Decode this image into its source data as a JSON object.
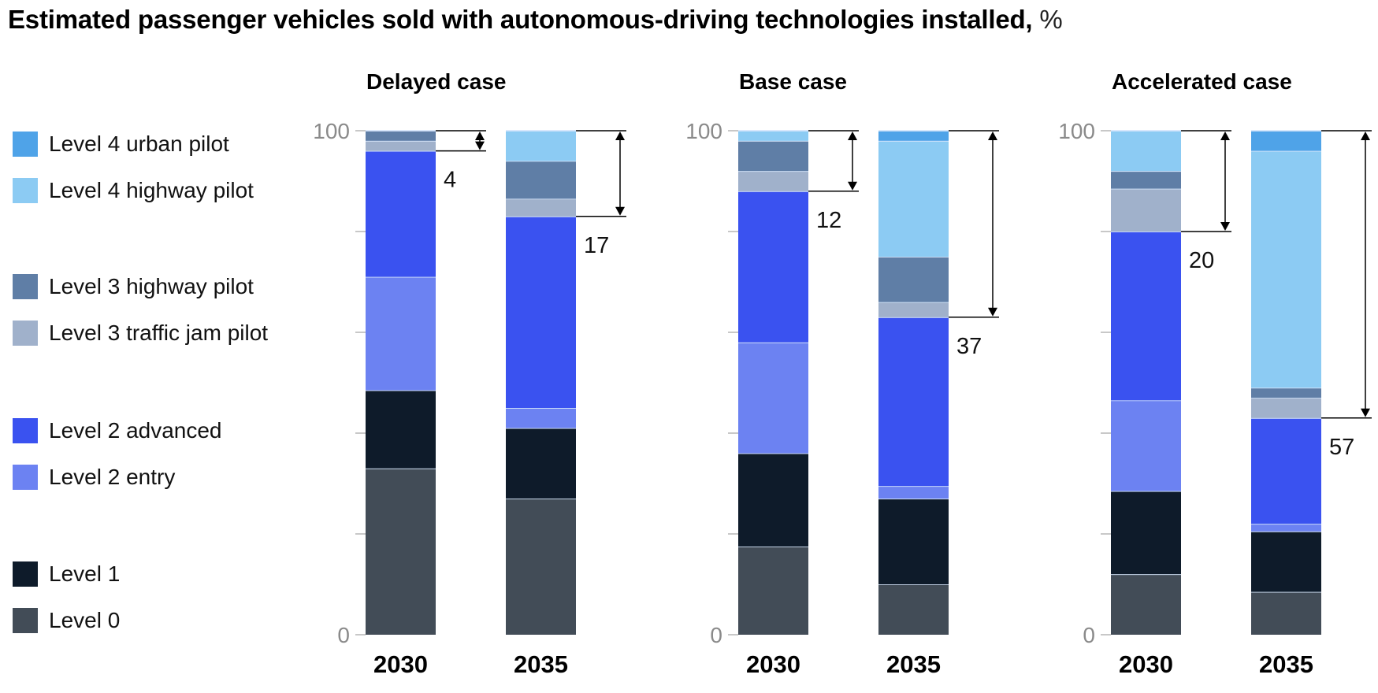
{
  "title": {
    "main": "Estimated passenger vehicles sold with autonomous-driving technologies installed,",
    "unit": "%"
  },
  "chart_data": {
    "type": "bar",
    "stacked": true,
    "title": "Estimated passenger vehicles sold with autonomous-driving technologies installed, %",
    "ylabel": "%",
    "ylim": [
      0,
      100
    ],
    "yticks": [
      0,
      20,
      40,
      60,
      80,
      100
    ],
    "ytick_labels": [
      "0",
      "",
      "",
      "",
      "",
      "100"
    ],
    "legend_position": "left",
    "series_order_bottom_to_top": [
      "Level 0",
      "Level 1",
      "Level 2 entry",
      "Level 2 advanced",
      "Level 3 traffic jam pilot",
      "Level 3 highway pilot",
      "Level 4 highway pilot",
      "Level 4 urban pilot"
    ],
    "legend": [
      {
        "name": "Level 4 urban pilot",
        "color": "#4fa3e8"
      },
      {
        "name": "Level 4 highway pilot",
        "color": "#8ccbf3"
      },
      {
        "name": "Level 3 highway pilot",
        "color": "#5f7ea6"
      },
      {
        "name": "Level 3 traffic jam pilot",
        "color": "#a0b1cb"
      },
      {
        "name": "Level 2 advanced",
        "color": "#3a52f0"
      },
      {
        "name": "Level 2 entry",
        "color": "#6c82f2"
      },
      {
        "name": "Level 1",
        "color": "#0e1b2a"
      },
      {
        "name": "Level 0",
        "color": "#424c57"
      }
    ],
    "panels": [
      {
        "title": "Delayed case",
        "categories": [
          "2030",
          "2035"
        ],
        "bars": [
          {
            "year": "2030",
            "level3plus_total": 4,
            "values": {
              "Level 0": 33,
              "Level 1": 15.5,
              "Level 2 entry": 22.5,
              "Level 2 advanced": 25,
              "Level 3 traffic jam pilot": 2,
              "Level 3 highway pilot": 2,
              "Level 4 highway pilot": 0,
              "Level 4 urban pilot": 0
            }
          },
          {
            "year": "2035",
            "level3plus_total": 17,
            "values": {
              "Level 0": 27,
              "Level 1": 14,
              "Level 2 entry": 4,
              "Level 2 advanced": 38,
              "Level 3 traffic jam pilot": 3.5,
              "Level 3 highway pilot": 7.5,
              "Level 4 highway pilot": 6,
              "Level 4 urban pilot": 0
            }
          }
        ]
      },
      {
        "title": "Base case",
        "categories": [
          "2030",
          "2035"
        ],
        "bars": [
          {
            "year": "2030",
            "level3plus_total": 12,
            "values": {
              "Level 0": 17.5,
              "Level 1": 18.5,
              "Level 2 entry": 22,
              "Level 2 advanced": 30,
              "Level 3 traffic jam pilot": 4,
              "Level 3 highway pilot": 6,
              "Level 4 highway pilot": 2,
              "Level 4 urban pilot": 0
            }
          },
          {
            "year": "2035",
            "level3plus_total": 37,
            "values": {
              "Level 0": 10,
              "Level 1": 17,
              "Level 2 entry": 2.5,
              "Level 2 advanced": 33.5,
              "Level 3 traffic jam pilot": 3,
              "Level 3 highway pilot": 9,
              "Level 4 highway pilot": 23,
              "Level 4 urban pilot": 2
            }
          }
        ]
      },
      {
        "title": "Accelerated case",
        "categories": [
          "2030",
          "2035"
        ],
        "bars": [
          {
            "year": "2030",
            "level3plus_total": 20,
            "values": {
              "Level 0": 12,
              "Level 1": 16.5,
              "Level 2 entry": 18,
              "Level 2 advanced": 33.5,
              "Level 3 traffic jam pilot": 8.5,
              "Level 3 highway pilot": 3.5,
              "Level 4 highway pilot": 8,
              "Level 4 urban pilot": 0
            }
          },
          {
            "year": "2035",
            "level3plus_total": 57,
            "values": {
              "Level 0": 8.5,
              "Level 1": 12,
              "Level 2 entry": 1.5,
              "Level 2 advanced": 21,
              "Level 3 traffic jam pilot": 4,
              "Level 3 highway pilot": 2,
              "Level 4 highway pilot": 47,
              "Level 4 urban pilot": 4
            }
          }
        ]
      }
    ]
  }
}
